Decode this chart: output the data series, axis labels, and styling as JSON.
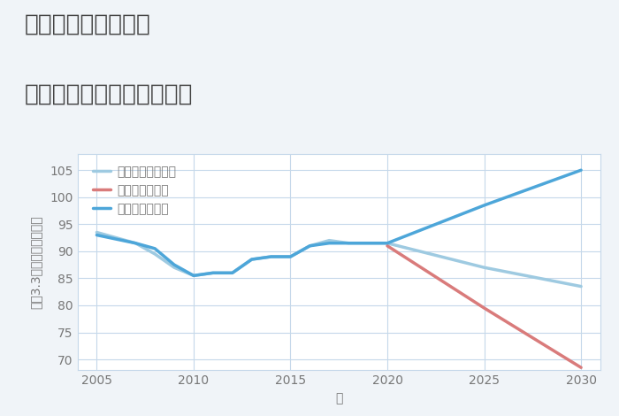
{
  "title_line1": "三重県伊賀市土橋の",
  "title_line2": "中古マンションの価格推移",
  "xlabel": "年",
  "ylabel": "坪（3.3㎡）単価（万円）",
  "background_color": "#f0f4f8",
  "plot_bg_color": "#ffffff",
  "good_scenario": {
    "label": "グッドシナリオ",
    "color": "#4da6d9",
    "x": [
      2005,
      2007,
      2008,
      2009,
      2010,
      2011,
      2012,
      2013,
      2014,
      2015,
      2016,
      2017,
      2018,
      2019,
      2020,
      2025,
      2030
    ],
    "y": [
      93.0,
      91.5,
      90.5,
      87.5,
      85.5,
      86.0,
      86.0,
      88.5,
      89.0,
      89.0,
      91.0,
      91.5,
      91.5,
      91.5,
      91.5,
      98.5,
      105.0
    ]
  },
  "bad_scenario": {
    "label": "バッドシナリオ",
    "color": "#d97b7b",
    "x": [
      2020,
      2025,
      2030
    ],
    "y": [
      91.0,
      79.5,
      68.5
    ]
  },
  "normal_scenario": {
    "label": "ノーマルシナリオ",
    "color": "#9ecae1",
    "x": [
      2005,
      2007,
      2008,
      2009,
      2010,
      2011,
      2012,
      2013,
      2014,
      2015,
      2016,
      2017,
      2018,
      2019,
      2020,
      2025,
      2030
    ],
    "y": [
      93.5,
      91.5,
      89.5,
      87.0,
      85.5,
      86.0,
      86.0,
      88.5,
      89.0,
      89.0,
      91.0,
      92.0,
      91.5,
      91.5,
      91.5,
      87.0,
      83.5
    ]
  },
  "xlim": [
    2004,
    2031
  ],
  "ylim": [
    68,
    108
  ],
  "xticks": [
    2005,
    2010,
    2015,
    2020,
    2025,
    2030
  ],
  "yticks": [
    70,
    75,
    80,
    85,
    90,
    95,
    100,
    105
  ],
  "title_fontsize": 19,
  "label_fontsize": 10,
  "tick_fontsize": 10,
  "legend_fontsize": 10,
  "line_width": 2.5,
  "grid_color": "#c5d8ea",
  "title_color": "#444444",
  "axis_color": "#777777"
}
